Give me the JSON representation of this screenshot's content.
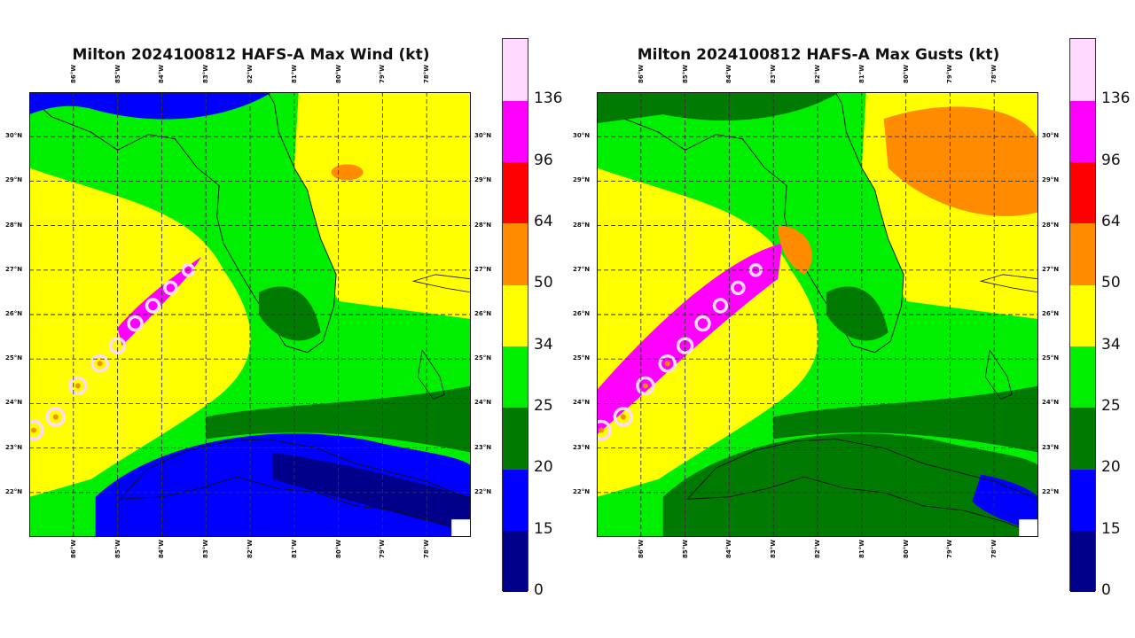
{
  "panels": [
    {
      "id": "wind",
      "title": "Milton 2024100812 HAFS-A Max Wind (kt)",
      "field": "sustained-wind"
    },
    {
      "id": "gusts",
      "title": "Milton 2024100812 HAFS-A Max Gusts (kt)",
      "field": "wind-gust"
    }
  ],
  "map": {
    "lon_range": [
      -87,
      -77
    ],
    "lat_range": [
      21,
      31
    ],
    "lon_ticks": [
      "86°W",
      "85°W",
      "84°W",
      "83°W",
      "82°W",
      "81°W",
      "80°W",
      "79°W",
      "78°W"
    ],
    "lat_ticks": [
      "30°N",
      "29°N",
      "28°N",
      "27°N",
      "26°N",
      "25°N",
      "24°N",
      "23°N",
      "22°N"
    ],
    "gridlines": true
  },
  "colorbar": {
    "levels": [
      "0",
      "15",
      "20",
      "25",
      "34",
      "50",
      "64",
      "96",
      "136"
    ],
    "colors": [
      "#00008b",
      "#0000ff",
      "#007a00",
      "#00ee00",
      "#ffff00",
      "#ff8c00",
      "#ff0000",
      "#ff00ff",
      "#ffd9ff"
    ],
    "land_color": "#ffffff"
  },
  "chart_data": [
    {
      "type": "heatmap",
      "title": "Milton 2024100812 HAFS-A Max Wind (kt)",
      "xlabel": "",
      "ylabel": "",
      "xlim": [
        -87,
        -77
      ],
      "ylim": [
        21,
        31
      ],
      "levels_kt": [
        0,
        15,
        20,
        25,
        34,
        50,
        64,
        96,
        136
      ],
      "track_points": [
        [
          -86.9,
          23.4
        ],
        [
          -86.4,
          23.7
        ],
        [
          -85.9,
          24.4
        ],
        [
          -85.4,
          24.9
        ],
        [
          -85.0,
          25.3
        ],
        [
          -84.6,
          25.8
        ],
        [
          -84.2,
          26.2
        ],
        [
          -83.8,
          26.6
        ],
        [
          -83.4,
          27.0
        ]
      ]
    },
    {
      "type": "heatmap",
      "title": "Milton 2024100812 HAFS-A Max Gusts (kt)",
      "xlabel": "",
      "ylabel": "",
      "xlim": [
        -87,
        -77
      ],
      "ylim": [
        21,
        31
      ],
      "levels_kt": [
        0,
        15,
        20,
        25,
        34,
        50,
        64,
        96,
        136
      ],
      "track_points": [
        [
          -86.9,
          23.4
        ],
        [
          -86.4,
          23.7
        ],
        [
          -85.9,
          24.4
        ],
        [
          -85.4,
          24.9
        ],
        [
          -85.0,
          25.3
        ],
        [
          -84.6,
          25.8
        ],
        [
          -84.2,
          26.2
        ],
        [
          -83.8,
          26.6
        ],
        [
          -83.4,
          27.0
        ]
      ]
    }
  ]
}
